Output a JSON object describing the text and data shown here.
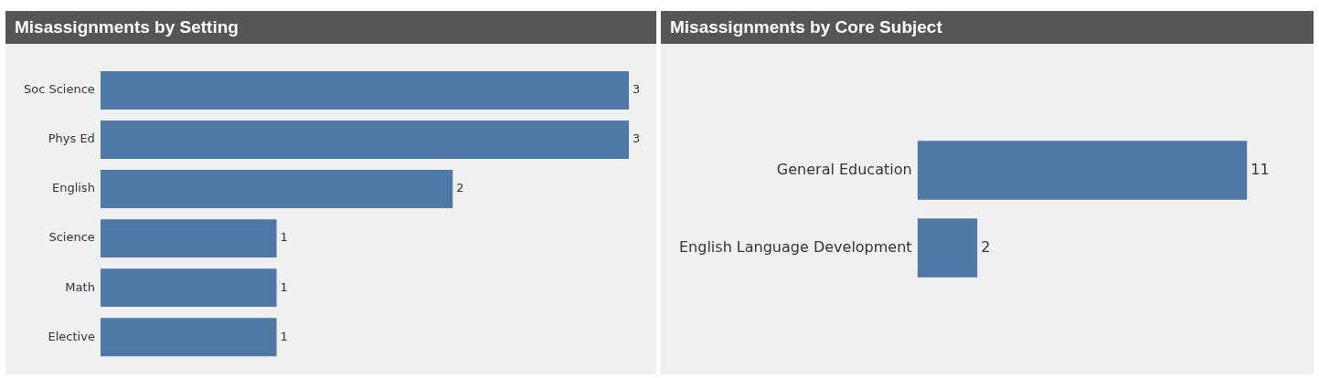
{
  "chart_data": [
    {
      "type": "bar",
      "orientation": "horizontal",
      "title": "Misassignments by Setting",
      "categories": [
        "Soc Science",
        "Phys Ed",
        "English",
        "Science",
        "Math",
        "Elective"
      ],
      "values": [
        3,
        3,
        2,
        1,
        1,
        1
      ],
      "color": "#4e79a7",
      "tick_labels": "y",
      "data_labels": true
    },
    {
      "type": "bar",
      "orientation": "horizontal",
      "title": "Misassignments by Core Subject",
      "categories": [
        "General Education",
        "English Language Development"
      ],
      "values": [
        11,
        2
      ],
      "color": "#4e79a7",
      "tick_labels": "y",
      "data_labels": true
    }
  ]
}
